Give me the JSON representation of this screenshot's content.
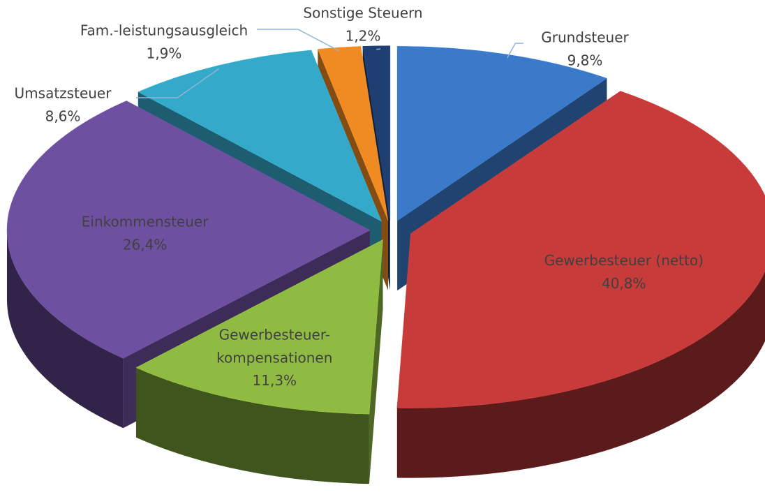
{
  "chart_data": {
    "type": "pie3d",
    "categories": [
      "Grundsteuer",
      "Gewerbesteuer (netto)",
      "Gewerbesteuer-kompensationen",
      "Einkommensteuer",
      "Umsatzsteuer",
      "Fam.-leistungsausgleich",
      "Sonstige Steuern"
    ],
    "values": [
      9.8,
      40.8,
      11.3,
      26.4,
      8.6,
      1.9,
      1.2
    ],
    "value_labels": [
      "9,8%",
      "40,8%",
      "11,3%",
      "26,4%",
      "8,6%",
      "1,9%",
      "1,2%"
    ],
    "colors": [
      "#3b79c9",
      "#c73b3a",
      "#8fbb42",
      "#6e50a0",
      "#35a9c9",
      "#f08a22",
      "#1f3f72"
    ]
  }
}
